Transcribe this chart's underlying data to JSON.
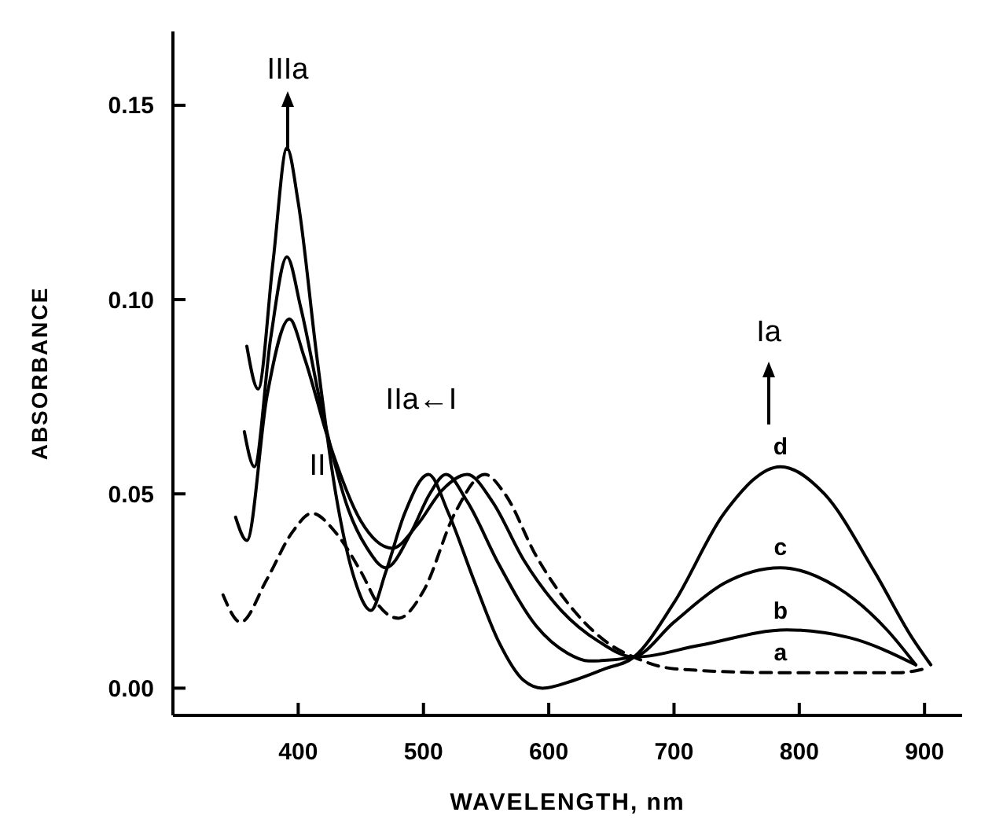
{
  "chart_data": {
    "type": "line",
    "xlabel": "WAVELENGTH, nm",
    "ylabel": "ABSORBANCE",
    "xlim": [
      300,
      930
    ],
    "xticks": [
      400,
      500,
      600,
      700,
      800,
      900
    ],
    "ylim": [
      -0.007,
      0.169
    ],
    "yticks": [
      {
        "value": 0,
        "label": "0.00"
      },
      {
        "value": 0.05,
        "label": "0.05"
      },
      {
        "value": 0.1,
        "label": "0.10"
      },
      {
        "value": 0.15,
        "label": "0.15"
      }
    ],
    "grid": false,
    "marker": "none",
    "series": [
      {
        "name": "a",
        "color": "#000000",
        "line_style": "dashed",
        "x": [
          340,
          354,
          375,
          395,
          411,
          430,
          450,
          465,
          480,
          500,
          525,
          549,
          565,
          590,
          620,
          650,
          668,
          700,
          780,
          880,
          900
        ],
        "values": [
          0.024,
          0.017,
          0.028,
          0.04,
          0.045,
          0.04,
          0.03,
          0.021,
          0.018,
          0.025,
          0.045,
          0.055,
          0.05,
          0.034,
          0.02,
          0.011,
          0.008,
          0.005,
          0.004,
          0.004,
          0.005
        ]
      },
      {
        "name": "b",
        "color": "#000000",
        "line_style": "solid",
        "x": [
          350,
          359,
          375,
          393,
          405,
          425,
          450,
          475,
          495,
          515,
          535,
          555,
          580,
          610,
          640,
          668,
          720,
          790,
          840,
          893
        ],
        "values": [
          0.044,
          0.038,
          0.075,
          0.095,
          0.085,
          0.063,
          0.043,
          0.036,
          0.042,
          0.051,
          0.055,
          0.048,
          0.033,
          0.02,
          0.012,
          0.008,
          0.011,
          0.015,
          0.013,
          0.006
        ]
      },
      {
        "name": "c",
        "color": "#000000",
        "line_style": "solid",
        "x": [
          357,
          365,
          378,
          391,
          402,
          420,
          440,
          455,
          470,
          490,
          505,
          518,
          535,
          560,
          590,
          615,
          632,
          668,
          700,
          740,
          785,
          830,
          870,
          893
        ],
        "values": [
          0.066,
          0.057,
          0.09,
          0.111,
          0.098,
          0.07,
          0.046,
          0.036,
          0.031,
          0.04,
          0.05,
          0.055,
          0.048,
          0.032,
          0.016,
          0.009,
          0.007,
          0.008,
          0.017,
          0.027,
          0.031,
          0.026,
          0.015,
          0.006
        ]
      },
      {
        "name": "d",
        "color": "#000000",
        "line_style": "solid",
        "x": [
          359,
          368,
          380,
          391,
          400,
          415,
          430,
          445,
          458,
          470,
          485,
          504,
          520,
          540,
          560,
          580,
          595,
          620,
          645,
          668,
          700,
          740,
          785,
          820,
          860,
          890,
          905
        ],
        "values": [
          0.088,
          0.077,
          0.11,
          0.139,
          0.125,
          0.085,
          0.05,
          0.028,
          0.02,
          0.03,
          0.045,
          0.055,
          0.045,
          0.028,
          0.012,
          0.002,
          0,
          0.002,
          0.005,
          0.008,
          0.022,
          0.045,
          0.057,
          0.05,
          0.03,
          0.013,
          0.006
        ]
      }
    ],
    "annotations": [
      "IIIa",
      "Ia",
      "IIa←I",
      "II"
    ]
  }
}
